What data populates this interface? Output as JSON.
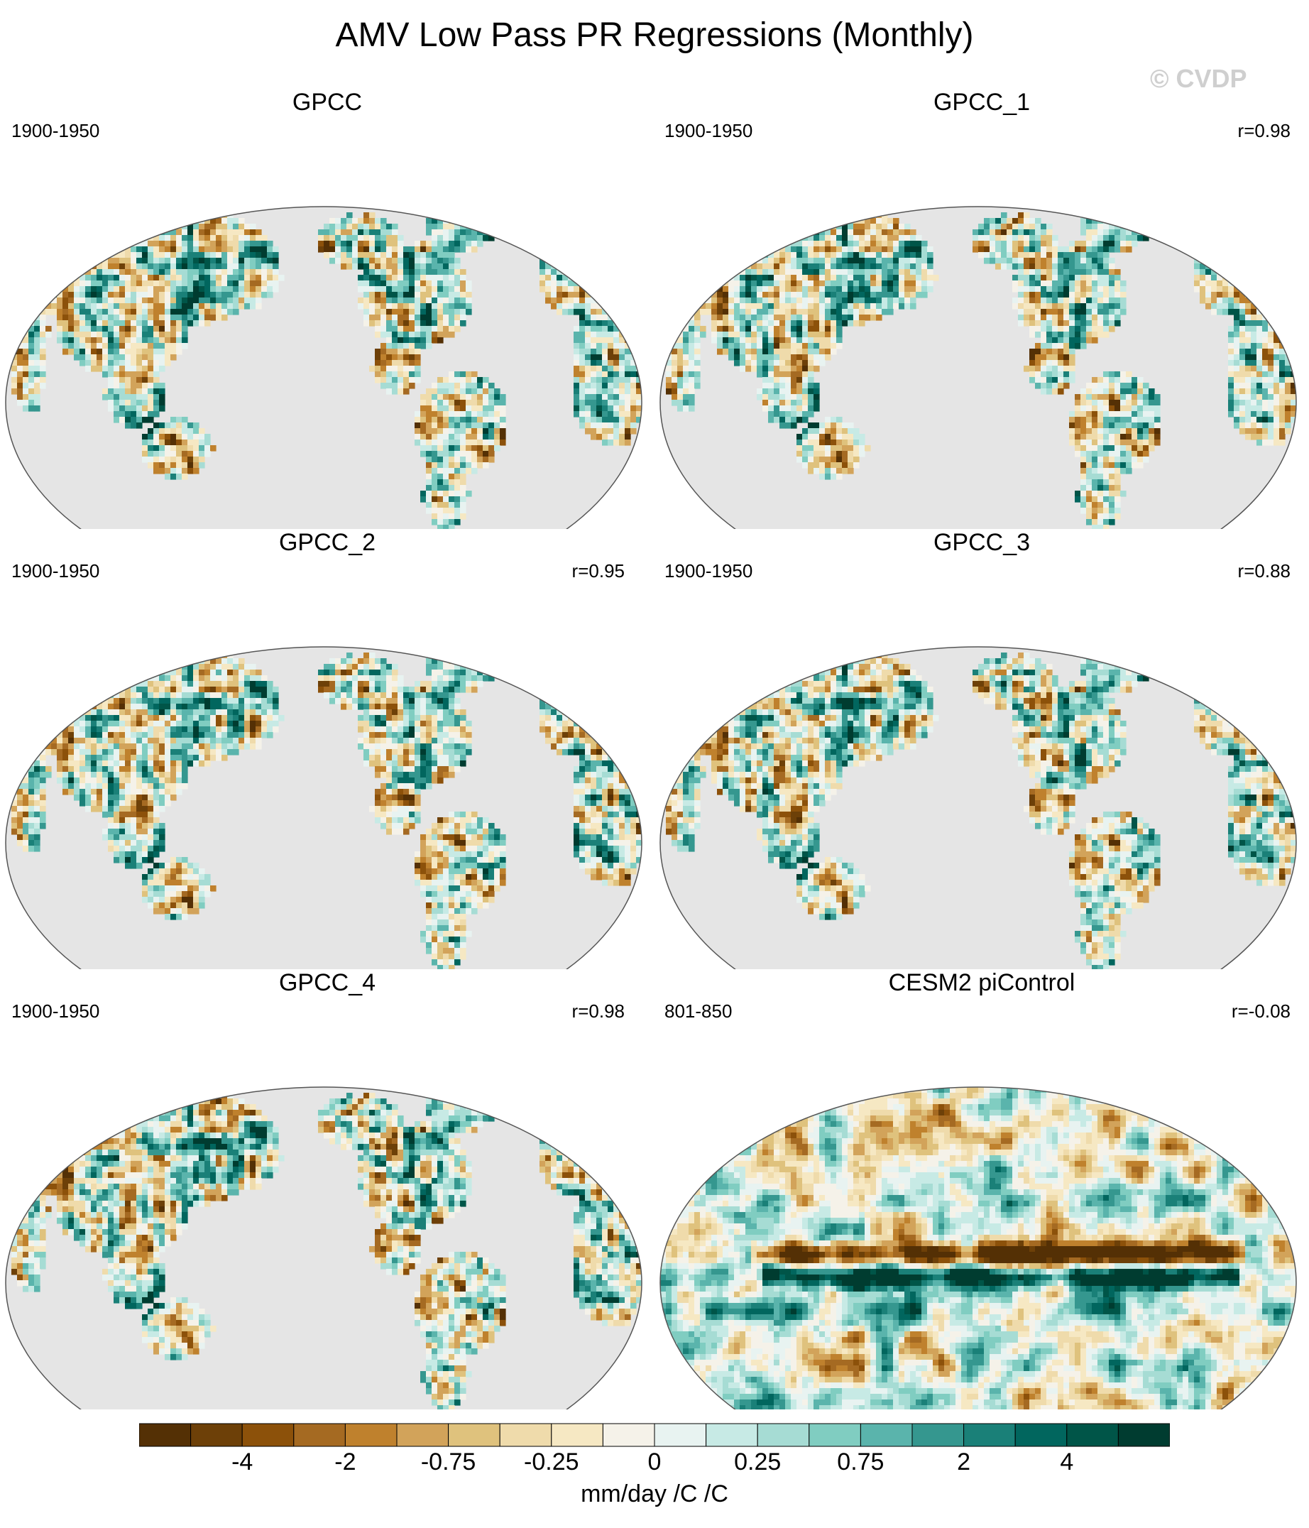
{
  "title": "AMV Low Pass PR Regressions (Monthly)",
  "watermark": "© CVDP",
  "colors": {
    "ocean": "#e5e5e5",
    "palette": [
      "#543005",
      "#6d4008",
      "#8c510a",
      "#a56a22",
      "#bf812d",
      "#d2a35a",
      "#dfc27d",
      "#efdbab",
      "#f6e8c3",
      "#f5f2e9",
      "#e8f3f1",
      "#c7eae5",
      "#a6dcd4",
      "#80cdc1",
      "#5ab4ac",
      "#35978f",
      "#1a8078",
      "#01665e",
      "#005548",
      "#003c30"
    ]
  },
  "panels": [
    {
      "name": "GPCC",
      "period": "1900-1950",
      "corr": "",
      "field": "obs"
    },
    {
      "name": "GPCC_1",
      "period": "1900-1950",
      "corr": "r=0.98",
      "field": "obs"
    },
    {
      "name": "GPCC_2",
      "period": "1900-1950",
      "corr": "r=0.95",
      "field": "obs"
    },
    {
      "name": "GPCC_3",
      "period": "1900-1950",
      "corr": "r=0.88",
      "field": "obs"
    },
    {
      "name": "GPCC_4",
      "period": "1900-1950",
      "corr": "r=0.98",
      "field": "obs"
    },
    {
      "name": "CESM2 piControl",
      "period": "801-850",
      "corr": "r=-0.08",
      "field": "model"
    }
  ],
  "colorbar": {
    "tick_labels": [
      "-4",
      "-2",
      "-0.75",
      "-0.25",
      "0",
      "0.25",
      "0.75",
      "2",
      "4"
    ],
    "units": "mm/day /C /C"
  }
}
